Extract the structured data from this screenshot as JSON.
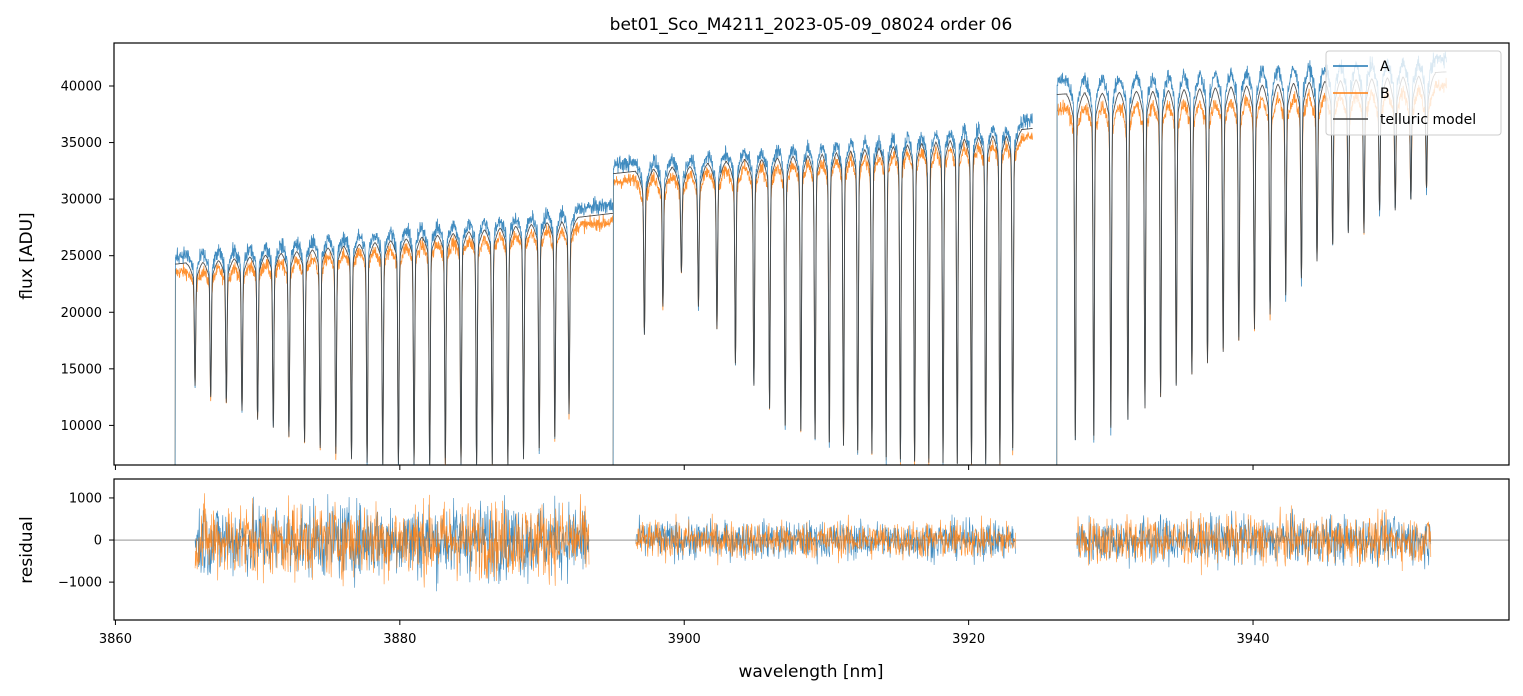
{
  "chart_data": [
    {
      "type": "line",
      "title": "bet01_Sco_M4211_2023-05-09_08024  order 06",
      "xlabel": "",
      "ylabel": "flux [ADU]",
      "xlim": [
        3859.9,
        3958.0
      ],
      "ylim": [
        6500,
        43800
      ],
      "yticks": [
        10000,
        15000,
        20000,
        25000,
        30000,
        35000,
        40000
      ],
      "yticklabels": [
        "10000",
        "15000",
        "20000",
        "25000",
        "30000",
        "35000",
        "40000"
      ],
      "legend": {
        "placement": "top-right",
        "entries": [
          "A",
          "B",
          "telluric model"
        ]
      },
      "segments": [
        {
          "x": [
            3864.2,
            3895.0
          ],
          "continuum_A": [
            25000,
            29500
          ],
          "continuum_B": [
            23500,
            28000
          ]
        },
        {
          "x": [
            3895.0,
            3924.5
          ],
          "continuum_A": [
            33000,
            37000
          ],
          "continuum_B": [
            31500,
            35500
          ]
        },
        {
          "x": [
            3926.2,
            3953.6
          ],
          "continuum_A": [
            40500,
            42500
          ],
          "continuum_B": [
            38000,
            40000
          ]
        }
      ],
      "absorption_lines": {
        "x": [
          3865.6,
          3866.7,
          3867.8,
          3868.9,
          3870.0,
          3871.1,
          3872.2,
          3873.3,
          3874.4,
          3875.5,
          3876.6,
          3877.7,
          3878.8,
          3879.9,
          3881.0,
          3882.1,
          3883.2,
          3884.3,
          3885.4,
          3886.5,
          3887.6,
          3888.7,
          3889.8,
          3890.9,
          3891.9,
          3897.2,
          3898.5,
          3899.8,
          3901.0,
          3902.3,
          3903.6,
          3904.9,
          3906.0,
          3907.1,
          3908.2,
          3909.2,
          3910.2,
          3911.2,
          3912.2,
          3913.2,
          3914.2,
          3915.2,
          3916.2,
          3917.2,
          3918.2,
          3919.2,
          3920.2,
          3921.2,
          3922.2,
          3923.1,
          3927.5,
          3928.8,
          3930.0,
          3931.2,
          3932.4,
          3933.5,
          3934.6,
          3935.7,
          3936.8,
          3937.9,
          3939.0,
          3940.1,
          3941.2,
          3942.3,
          3943.4,
          3944.5,
          3945.6,
          3946.7,
          3947.8,
          3948.9,
          3950.0,
          3951.1,
          3952.2
        ],
        "depth": [
          13500,
          12500,
          12000,
          11300,
          10500,
          9800,
          9000,
          8500,
          8000,
          7500,
          7000,
          6700,
          6600,
          6600,
          6600,
          6600,
          6600,
          6600,
          6600,
          6600,
          6600,
          7000,
          8000,
          9000,
          11000,
          18000,
          20500,
          23500,
          20500,
          18500,
          15500,
          13500,
          11500,
          10000,
          9500,
          8800,
          8500,
          8200,
          7800,
          7500,
          7200,
          7000,
          6800,
          6700,
          6700,
          6600,
          6600,
          6600,
          6600,
          8000,
          8700,
          9100,
          9800,
          10500,
          11500,
          12500,
          13500,
          14500,
          15500,
          16500,
          17500,
          18500,
          19800,
          21500,
          23000,
          24500,
          26000,
          27000,
          27000,
          29000,
          29000,
          30000,
          31000
        ]
      },
      "series": [
        {
          "name": "A",
          "color": "#1f77b4"
        },
        {
          "name": "B",
          "color": "#ff7f0e"
        },
        {
          "name": "telluric model",
          "color": "#404040"
        }
      ]
    },
    {
      "type": "line",
      "title": "",
      "xlabel": "wavelength [nm]",
      "ylabel": "residual",
      "xlim": [
        3859.9,
        3958.0
      ],
      "ylim": [
        -1900,
        1450
      ],
      "yticks": [
        -1000,
        0,
        1000
      ],
      "yticklabels": [
        "−1000",
        "0",
        "1000"
      ],
      "xticks": [
        3860,
        3880,
        3900,
        3920,
        3940
      ],
      "xticklabels": [
        "3860",
        "3880",
        "3900",
        "3920",
        "3940"
      ],
      "segments": [
        {
          "x": [
            3865.6,
            3893.3
          ],
          "noise_amplitude": 800
        },
        {
          "x": [
            3896.6,
            3923.3
          ],
          "noise_amplitude": 400
        },
        {
          "x": [
            3927.6,
            3952.5
          ],
          "noise_amplitude": 500
        }
      ],
      "series": [
        {
          "name": "A",
          "color": "#1f77b4"
        },
        {
          "name": "B",
          "color": "#ff7f0e"
        }
      ]
    }
  ]
}
